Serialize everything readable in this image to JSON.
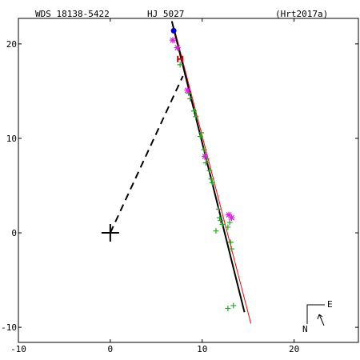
{
  "header": {
    "left": "WDS 18138-5422",
    "middle": "HJ 5027",
    "right": "(Hrt2017a)"
  },
  "compass": {
    "east_label": "E",
    "north_label": "N"
  },
  "colors": {
    "axes": "#000000",
    "observations": "#22aa22",
    "speckle": "#e020e0",
    "hipparcos": "#dd0000",
    "orbit_fit": "#000000",
    "alt_orbit": "#ff0000",
    "latest_point": "#0000dd",
    "dashed": "#000000"
  },
  "chart_data": {
    "type": "scatter",
    "title": "",
    "xlabel": "",
    "ylabel": "",
    "xlim": [
      -10,
      27
    ],
    "ylim": [
      -11.6,
      22.7
    ],
    "xticks": [
      -10,
      0,
      10,
      20
    ],
    "yticks": [
      -10,
      0,
      10,
      20
    ],
    "grid": false,
    "primary": [
      0,
      0
    ],
    "series": [
      {
        "marker": "plus",
        "points": [
          [
            7.6,
            17.8
          ],
          [
            8.5,
            14.8
          ],
          [
            8.7,
            14.2
          ],
          [
            9.1,
            12.9
          ],
          [
            9.3,
            12.3
          ],
          [
            9.9,
            10.6
          ],
          [
            9.8,
            10.2
          ],
          [
            10.2,
            8.8
          ],
          [
            10.5,
            7.8
          ],
          [
            10.4,
            7.4
          ],
          [
            10.8,
            6.6
          ],
          [
            11.0,
            5.7
          ],
          [
            11.1,
            5.3
          ],
          [
            11.8,
            2.5
          ],
          [
            11.9,
            1.6
          ],
          [
            12.0,
            1.3
          ],
          [
            12.2,
            0.9
          ],
          [
            11.5,
            0.2
          ],
          [
            12.8,
            0.6
          ],
          [
            13.0,
            1.1
          ],
          [
            13.1,
            -1.0
          ],
          [
            13.2,
            -1.7
          ],
          [
            12.8,
            -8.0
          ],
          [
            13.4,
            -7.7
          ]
        ]
      },
      {
        "marker": "asterisk",
        "points": [
          [
            6.8,
            20.4
          ],
          [
            7.3,
            19.6
          ],
          [
            8.4,
            15.1
          ],
          [
            10.3,
            8.1
          ],
          [
            12.9,
            1.9
          ],
          [
            13.2,
            1.6
          ]
        ]
      },
      {
        "marker": "H",
        "points": [
          [
            7.6,
            18.4
          ]
        ]
      },
      {
        "marker": "dot",
        "points": [
          [
            6.9,
            21.4
          ]
        ]
      }
    ],
    "orbit_fit": [
      [
        6.7,
        22.4
      ],
      [
        14.6,
        -8.4
      ]
    ],
    "alt_orbit": [
      [
        7.0,
        21.5
      ],
      [
        15.3,
        -9.6
      ]
    ],
    "dashed_line": [
      [
        0,
        0
      ],
      [
        7.9,
        16.6
      ]
    ]
  }
}
